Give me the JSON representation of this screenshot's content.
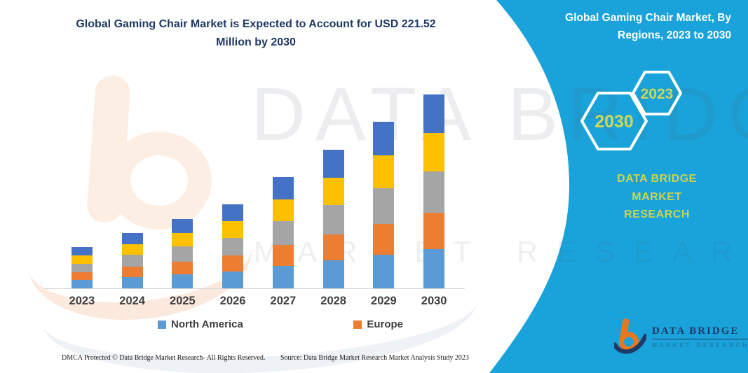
{
  "header": {
    "title_line1": "Global Gaming Chair Market is Expected to Account for USD 221.52",
    "title_line2": "Million by 2030",
    "title_color": "#1f3864"
  },
  "side_panel": {
    "background_color": "#1aa3da",
    "title_line1": "Global Gaming Chair Market, By",
    "title_line2": "Regions, 2023 to 2030",
    "hexagons": [
      {
        "label": "2030"
      },
      {
        "label": "2023"
      }
    ],
    "hexagon_label_color": "#ccd75a",
    "brand_line1": "DATA BRIDGE MARKET",
    "brand_line2": "RESEARCH",
    "brand_color": "#c9d44f",
    "logo": {
      "name": "DATA BRIDGE",
      "subtitle": "MARKET RESEARCH",
      "glyph_orange": "#e87722",
      "glyph_navy": "#1f3a66"
    }
  },
  "watermarks": {
    "text1": "DATA BRIDGE",
    "text2": "MARKET RESEARCH"
  },
  "footer": {
    "left": "DMCA Protected © Data Bridge Market Research-  All Rights Reserved.",
    "right": "Source: Data Bridge Market Research  Market Analysis Study 2023"
  },
  "chart_data": {
    "type": "bar",
    "stacked": true,
    "title": "Global Gaming Chair Market is Expected to Account for USD 221.52 Million by 2030",
    "unit": "USD Million",
    "categories": [
      "2023",
      "2024",
      "2025",
      "2026",
      "2027",
      "2028",
      "2029",
      "2030"
    ],
    "series": [
      {
        "name": "North America",
        "color": "#5b9bd5",
        "values": [
          9.5,
          12.8,
          16.0,
          19.4,
          25.7,
          32.0,
          38.4,
          44.9
        ]
      },
      {
        "name": "Europe",
        "color": "#ed7d31",
        "values": [
          8.7,
          11.7,
          14.7,
          17.8,
          23.6,
          29.4,
          35.3,
          41.2
        ]
      },
      {
        "name": "(unlabeled gray series)",
        "color": "#a5a5a5",
        "values": [
          10.1,
          13.5,
          16.9,
          20.5,
          27.2,
          33.9,
          40.7,
          47.5
        ]
      },
      {
        "name": "(unlabeled yellow series)",
        "color": "#ffc000",
        "values": [
          9.3,
          12.5,
          15.6,
          18.9,
          25.1,
          31.2,
          37.5,
          43.9
        ]
      },
      {
        "name": "(unlabeled dark-blue series)",
        "color": "#4472c4",
        "values": [
          9.4,
          12.5,
          15.7,
          19.0,
          25.2,
          31.4,
          37.7,
          44.0
        ]
      }
    ],
    "totals_estimated": [
      47.0,
      63.0,
      78.9,
      95.6,
      126.8,
      157.9,
      189.6,
      221.5
    ],
    "legend": {
      "entries": [
        "North America",
        "Europe"
      ],
      "position": "bottom"
    },
    "axes": {
      "x_ticks": [
        "2023",
        "2024",
        "2025",
        "2026",
        "2027",
        "2028",
        "2029",
        "2030"
      ],
      "y_axis_visible": false,
      "ymax_est": 225
    },
    "grid": false
  }
}
